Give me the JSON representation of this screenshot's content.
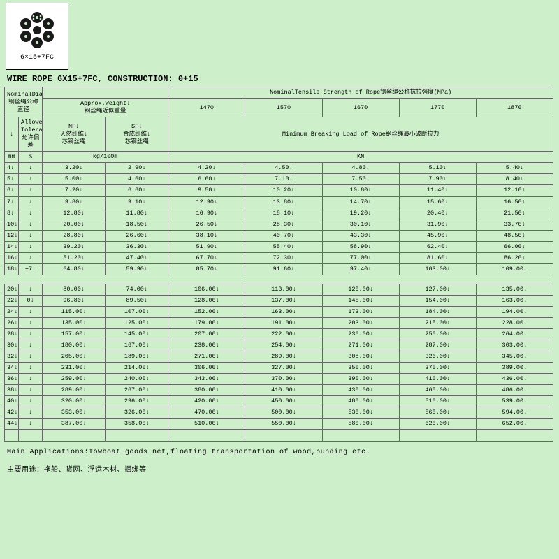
{
  "product": {
    "label": "6×15+7FC",
    "title": "WIRE ROPE 6X15+7FC, CONSTRUCTION: 0+15"
  },
  "headers": {
    "nominal_diameter": "NominalDiameter↓\n钢丝绳公称直径",
    "approx_weight": "Approx.Weight↓\n钢丝绳近似重量",
    "tensile_title": "NominalTensile Strength of Rope钢丝绳公称抗拉强度(MPa)",
    "t1470": "1470",
    "t1570": "1570",
    "t1670": "1670",
    "t1770": "1770",
    "t1870": "1870",
    "allowed_tolerance": "Allowed↓\nTolerance↓\n允许偏差",
    "nf": "NF↓\n天然纤维↓\n芯钢丝绳",
    "sf": "SF↓\n合成纤维↓\n芯钢丝绳",
    "min_break": "Minimum Breaking Load of Rope钢丝绳最小破断拉力",
    "unit_mm": "mm",
    "unit_pct": "%",
    "unit_kg": "kg/100m",
    "unit_kn": "KN"
  },
  "rows1": [
    {
      "mm": "4",
      "tol": "",
      "nf": "3.20",
      "sf": "2.90",
      "v": [
        "4.20",
        "4.50",
        "4.80",
        "5.10",
        "5.40"
      ]
    },
    {
      "mm": "5",
      "tol": "",
      "nf": "5.00",
      "sf": "4.60",
      "v": [
        "6.60",
        "7.10",
        "7.50",
        "7.90",
        "8.40"
      ]
    },
    {
      "mm": "6",
      "tol": "",
      "nf": "7.20",
      "sf": "6.60",
      "v": [
        "9.50",
        "10.20",
        "10.80",
        "11.40",
        "12.10"
      ]
    },
    {
      "mm": "7",
      "tol": "",
      "nf": "9.80",
      "sf": "9.10",
      "v": [
        "12.90",
        "13.80",
        "14.70",
        "15.60",
        "16.50"
      ]
    },
    {
      "mm": "8",
      "tol": "",
      "nf": "12.80",
      "sf": "11.80",
      "v": [
        "16.90",
        "18.10",
        "19.20",
        "20.40",
        "21.50"
      ]
    },
    {
      "mm": "10",
      "tol": "",
      "nf": "20.00",
      "sf": "18.50",
      "v": [
        "26.50",
        "28.30",
        "30.10",
        "31.90",
        "33.70"
      ]
    },
    {
      "mm": "12",
      "tol": "",
      "nf": "28.80",
      "sf": "26.60",
      "v": [
        "38.10",
        "40.70",
        "43.30",
        "45.90",
        "48.50"
      ]
    },
    {
      "mm": "14",
      "tol": "",
      "nf": "39.20",
      "sf": "36.30",
      "v": [
        "51.90",
        "55.40",
        "58.90",
        "62.40",
        "66.00"
      ]
    },
    {
      "mm": "16",
      "tol": "",
      "nf": "51.20",
      "sf": "47.40",
      "v": [
        "67.70",
        "72.30",
        "77.00",
        "81.60",
        "86.20"
      ]
    },
    {
      "mm": "18",
      "tol": "+7",
      "nf": "64.80",
      "sf": "59.90",
      "v": [
        "85.70",
        "91.60",
        "97.40",
        "103.00",
        "109.00"
      ]
    }
  ],
  "rows2": [
    {
      "mm": "20",
      "tol": "",
      "nf": "80.00",
      "sf": "74.00",
      "v": [
        "106.00",
        "113.00",
        "120.00",
        "127.00",
        "135.00"
      ]
    },
    {
      "mm": "22",
      "tol": "0",
      "nf": "96.80",
      "sf": "89.50",
      "v": [
        "128.00",
        "137.00",
        "145.00",
        "154.00",
        "163.00"
      ]
    },
    {
      "mm": "24",
      "tol": "",
      "nf": "115.00",
      "sf": "107.00",
      "v": [
        "152.00",
        "163.00",
        "173.00",
        "184.00",
        "194.00"
      ]
    },
    {
      "mm": "26",
      "tol": "",
      "nf": "135.00",
      "sf": "125.00",
      "v": [
        "179.00",
        "191.00",
        "203.00",
        "215.00",
        "228.00"
      ]
    },
    {
      "mm": "28",
      "tol": "",
      "nf": "157.00",
      "sf": "145.00",
      "v": [
        "207.00",
        "222.00",
        "236.00",
        "250.00",
        "264.00"
      ]
    },
    {
      "mm": "30",
      "tol": "",
      "nf": "180.00",
      "sf": "167.00",
      "v": [
        "238.00",
        "254.00",
        "271.00",
        "287.00",
        "303.00"
      ]
    },
    {
      "mm": "32",
      "tol": "",
      "nf": "205.00",
      "sf": "189.00",
      "v": [
        "271.00",
        "289.00",
        "308.00",
        "326.00",
        "345.00"
      ]
    },
    {
      "mm": "34",
      "tol": "",
      "nf": "231.00",
      "sf": "214.00",
      "v": [
        "306.00",
        "327.00",
        "350.00",
        "370.00",
        "389.00"
      ]
    },
    {
      "mm": "36",
      "tol": "",
      "nf": "259.00",
      "sf": "240.00",
      "v": [
        "343.00",
        "370.00",
        "390.00",
        "410.00",
        "436.00"
      ]
    },
    {
      "mm": "38",
      "tol": "",
      "nf": "289.00",
      "sf": "267.00",
      "v": [
        "380.00",
        "410.00",
        "430.00",
        "460.00",
        "486.00"
      ]
    },
    {
      "mm": "40",
      "tol": "",
      "nf": "320.00",
      "sf": "296.00",
      "v": [
        "420.00",
        "450.00",
        "480.00",
        "510.00",
        "539.00"
      ]
    },
    {
      "mm": "42",
      "tol": "",
      "nf": "353.00",
      "sf": "326.00",
      "v": [
        "470.00",
        "500.00",
        "530.00",
        "560.00",
        "594.00"
      ]
    },
    {
      "mm": "44",
      "tol": "",
      "nf": "387.00",
      "sf": "358.00",
      "v": [
        "510.00",
        "550.00",
        "580.00",
        "620.00",
        "652.00"
      ]
    }
  ],
  "footer": {
    "en": "Main Applications:Towboat goods net,floating transportation of wood,bunding etc.",
    "cn": "主要用途：拖船、货网、浮运木材、捆绑等"
  }
}
